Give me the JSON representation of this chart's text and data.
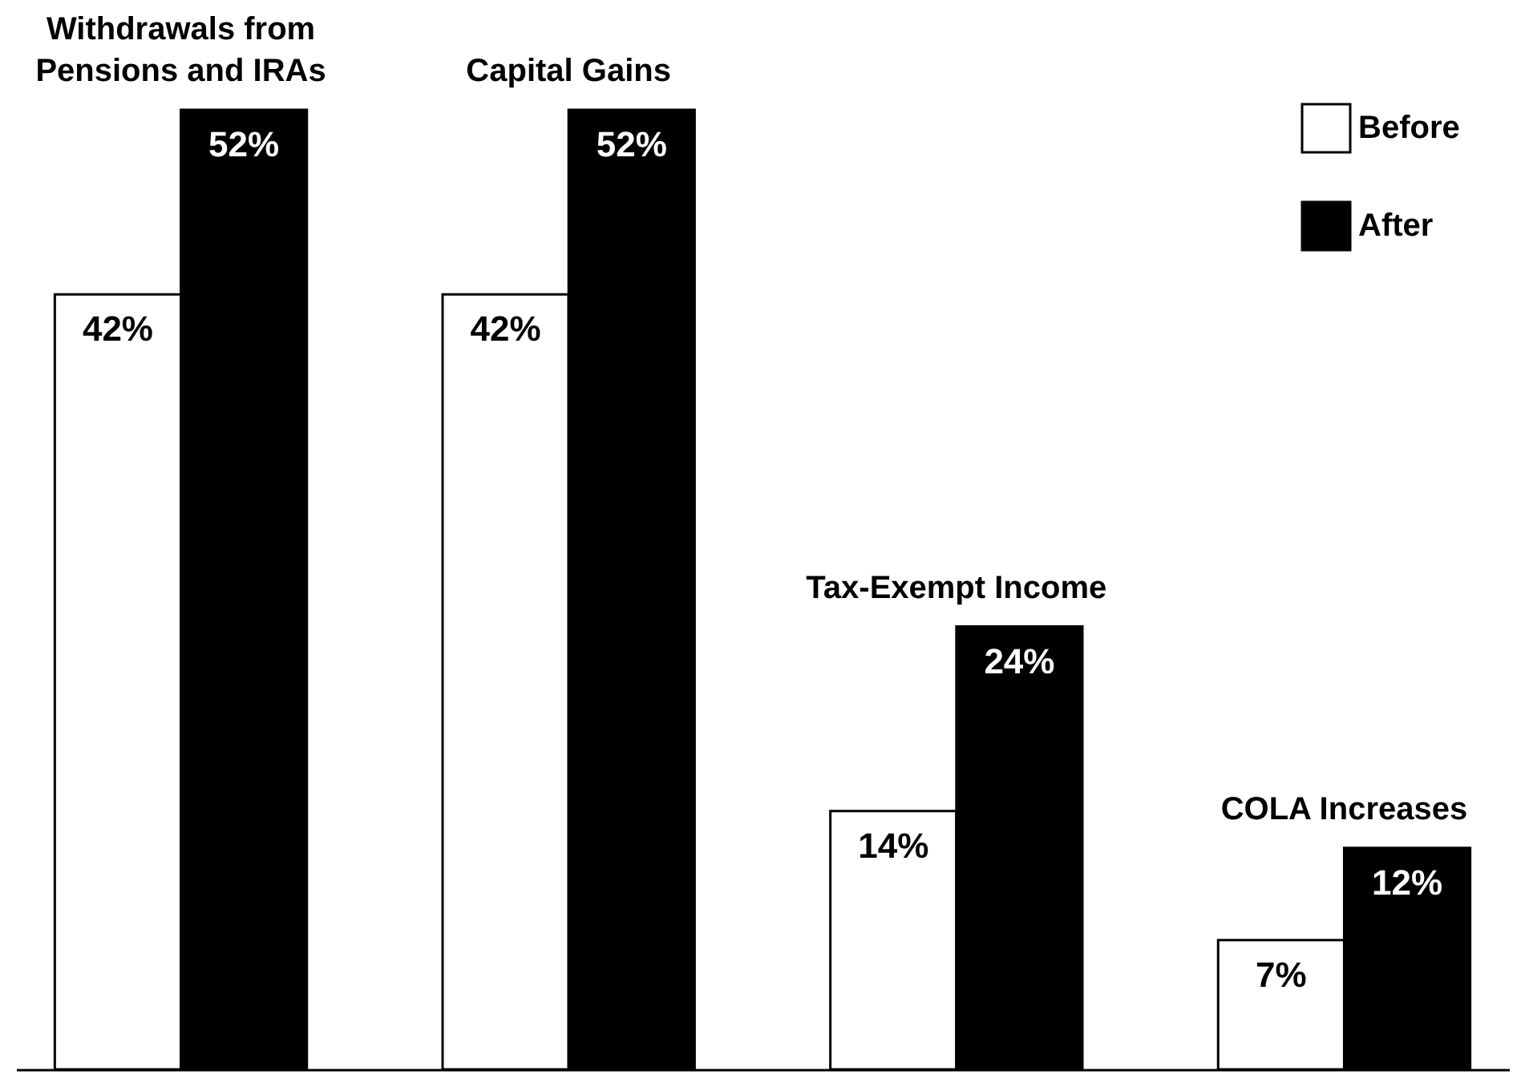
{
  "chart_data": {
    "type": "bar",
    "categories": [
      "Withdrawals from Pensions and IRAs",
      "Capital Gains",
      "Tax-Exempt Income",
      "COLA Increases"
    ],
    "series": [
      {
        "name": "Before",
        "color": "#ffffff",
        "values": [
          42,
          42,
          14,
          7
        ],
        "value_labels": [
          "42%",
          "42%",
          "14%",
          "7%"
        ]
      },
      {
        "name": "After",
        "color": "#000000",
        "values": [
          52,
          52,
          24,
          12
        ],
        "value_labels": [
          "52%",
          "52%",
          "24%",
          "12%"
        ]
      }
    ],
    "legend": "top right",
    "grid": false
  }
}
